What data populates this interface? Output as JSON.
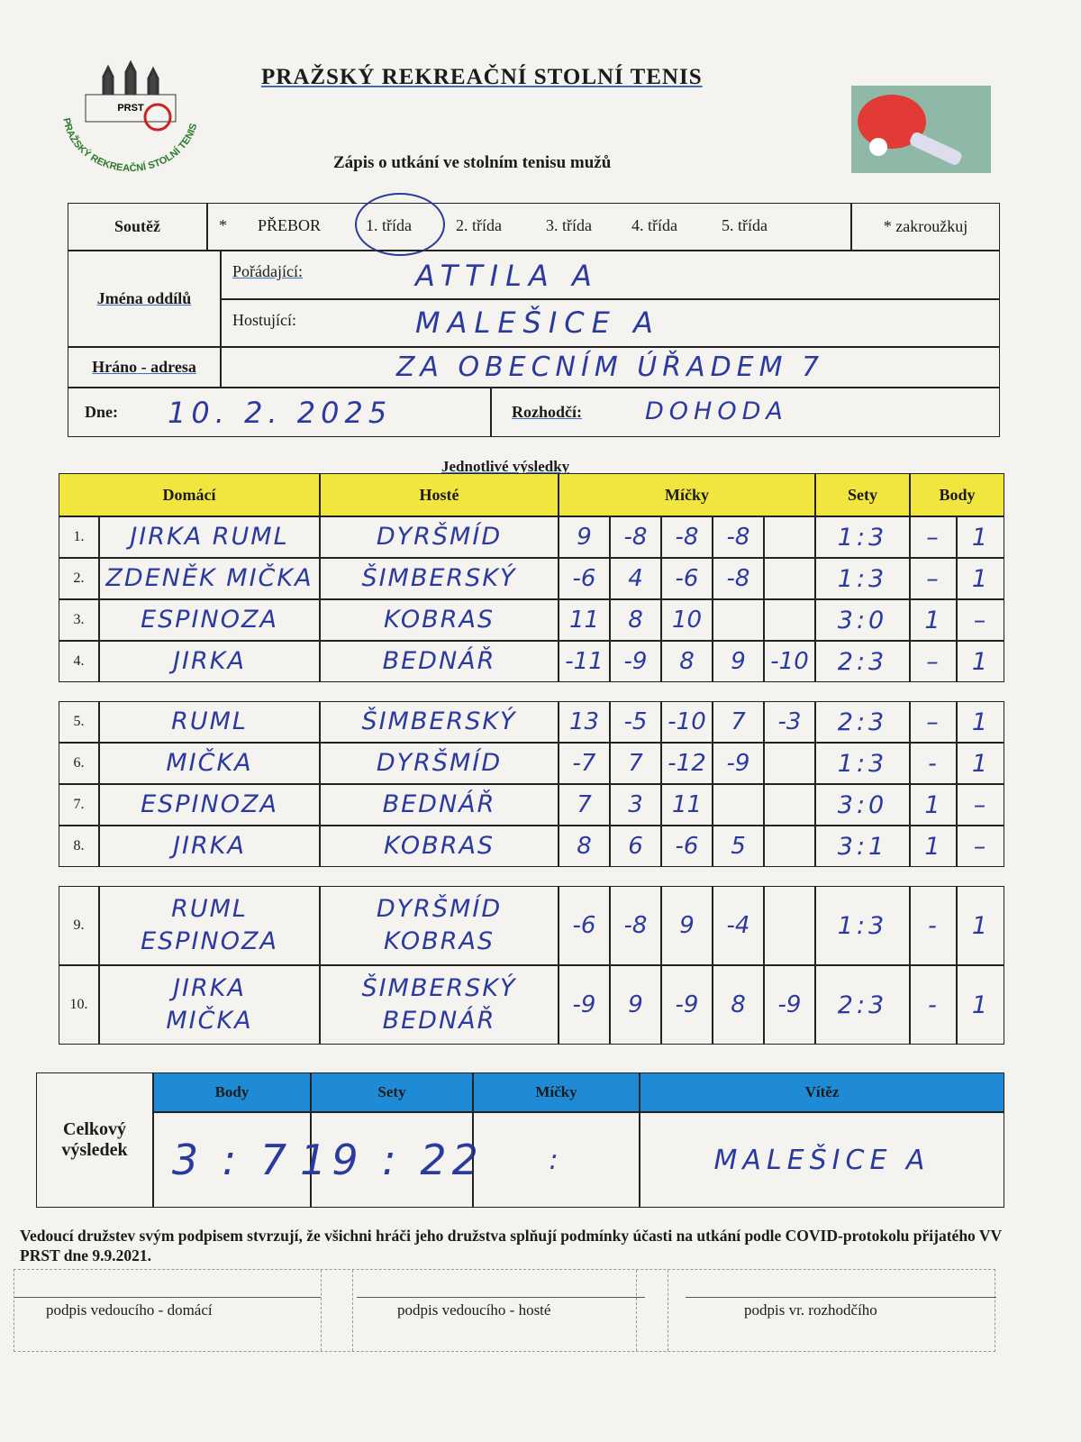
{
  "header": {
    "title": "PRAŽSKÝ REKREAČNÍ STOLNÍ TENIS",
    "subtitle": "Zápis o utkání ve stolním tenisu mužů",
    "logo": {
      "ring_text": "PRAŽSKÝ REKREAČNÍ STOLNÍ TENIS",
      "abbr": "PRST"
    }
  },
  "info": {
    "competition": {
      "label": "Soutěž",
      "marker": "*",
      "options": [
        "PŘEBOR",
        "1. třída",
        "2. třída",
        "3. třída",
        "4. třída",
        "5. třída"
      ],
      "selected": 1,
      "note": "* zakroužkuj"
    },
    "clubs": {
      "label": "Jména oddílů",
      "organizer_label": "Pořádající:",
      "organizer": "ATTILA A",
      "guest_label": "Hostující:",
      "guest": "MALEŠICE A"
    },
    "venue": {
      "label": "Hráno - adresa",
      "value": "ZA OBECNÍM ÚŘADEM 7"
    },
    "date": {
      "label": "Dne:",
      "value": "10. 2. 2025"
    },
    "referee": {
      "label": "Rozhodčí:",
      "value": "DOHODA"
    }
  },
  "results": {
    "title": "Jednotlivé výsledky",
    "headers": {
      "home": "Domácí",
      "guest": "Hosté",
      "balls": "Míčky",
      "sets": "Sety",
      "points": "Body"
    },
    "rows": [
      {
        "number": "1.",
        "home": [
          "JIRKA RUML"
        ],
        "guest": [
          "DYRŠMÍD"
        ],
        "balls": [
          "9",
          "-8",
          "-8",
          "-8"
        ],
        "sets": "1:3",
        "points": [
          "–",
          "1"
        ]
      },
      {
        "number": "2.",
        "home": [
          "ZDENĚK MIČKA"
        ],
        "guest": [
          "ŠIMBERSKÝ"
        ],
        "balls": [
          "-6",
          "4",
          "-6",
          "-8"
        ],
        "sets": "1:3",
        "points": [
          "–",
          "1"
        ]
      },
      {
        "number": "3.",
        "home": [
          "ESPINOZA"
        ],
        "guest": [
          "KOBRAS"
        ],
        "balls": [
          "11",
          "8",
          "10"
        ],
        "sets": "3:0",
        "points": [
          "1",
          "–"
        ]
      },
      {
        "number": "4.",
        "home": [
          "JIRKA"
        ],
        "guest": [
          "BEDNÁŘ"
        ],
        "balls": [
          "-11",
          "-9",
          "8",
          "9",
          "-10"
        ],
        "sets": "2:3",
        "points": [
          "–",
          "1"
        ]
      },
      {
        "number": "5.",
        "home": [
          "RUML"
        ],
        "guest": [
          "ŠIMBERSKÝ"
        ],
        "balls": [
          "13",
          "-5",
          "-10",
          "7",
          "-3"
        ],
        "sets": "2:3",
        "points": [
          "–",
          "1"
        ]
      },
      {
        "number": "6.",
        "home": [
          "MIČKA"
        ],
        "guest": [
          "DYRŠMÍD"
        ],
        "balls": [
          "-7",
          "7",
          "-12",
          "-9"
        ],
        "sets": "1:3",
        "points": [
          "-",
          "1"
        ]
      },
      {
        "number": "7.",
        "home": [
          "ESPINOZA"
        ],
        "guest": [
          "BEDNÁŘ"
        ],
        "balls": [
          "7",
          "3",
          "11"
        ],
        "sets": "3:0",
        "points": [
          "1",
          "–"
        ]
      },
      {
        "number": "8.",
        "home": [
          "JIRKA"
        ],
        "guest": [
          "KOBRAS"
        ],
        "balls": [
          "8",
          "6",
          "-6",
          "5"
        ],
        "sets": "3:1",
        "points": [
          "1",
          "–"
        ]
      },
      {
        "number": "9.",
        "home": [
          "RUML",
          "ESPINOZA"
        ],
        "guest": [
          "DYRŠMÍD",
          "KOBRAS"
        ],
        "balls": [
          "-6",
          "-8",
          "9",
          "-4"
        ],
        "sets": "1:3",
        "points": [
          "-",
          "1"
        ]
      },
      {
        "number": "10.",
        "home": [
          "JIRKA",
          "MIČKA"
        ],
        "guest": [
          "ŠIMBERSKÝ",
          "BEDNÁŘ"
        ],
        "balls": [
          "-9",
          "9",
          "-9",
          "8",
          "-9"
        ],
        "sets": "2:3",
        "points": [
          "-",
          "1"
        ]
      }
    ]
  },
  "summary": {
    "label": "Celkový výsledek",
    "headers": {
      "points": "Body",
      "sets": "Sety",
      "balls": "Míčky",
      "winner": "Vítěz"
    },
    "points": "3 : 7",
    "sets": "19 : 22",
    "balls": ":",
    "winner": "MALEŠICE A"
  },
  "footer": {
    "declaration": "Vedoucí družstev svým podpisem stvrzují, že všichni hráči jeho družstva splňují podmínky účasti na utkání podle COVID-protokolu přijatého VV PRST dne 9.9.2021.",
    "signatures": [
      "podpis vedoucího - domácí",
      "podpis vedoucího - hosté",
      "podpis vr. rozhodčího"
    ]
  }
}
